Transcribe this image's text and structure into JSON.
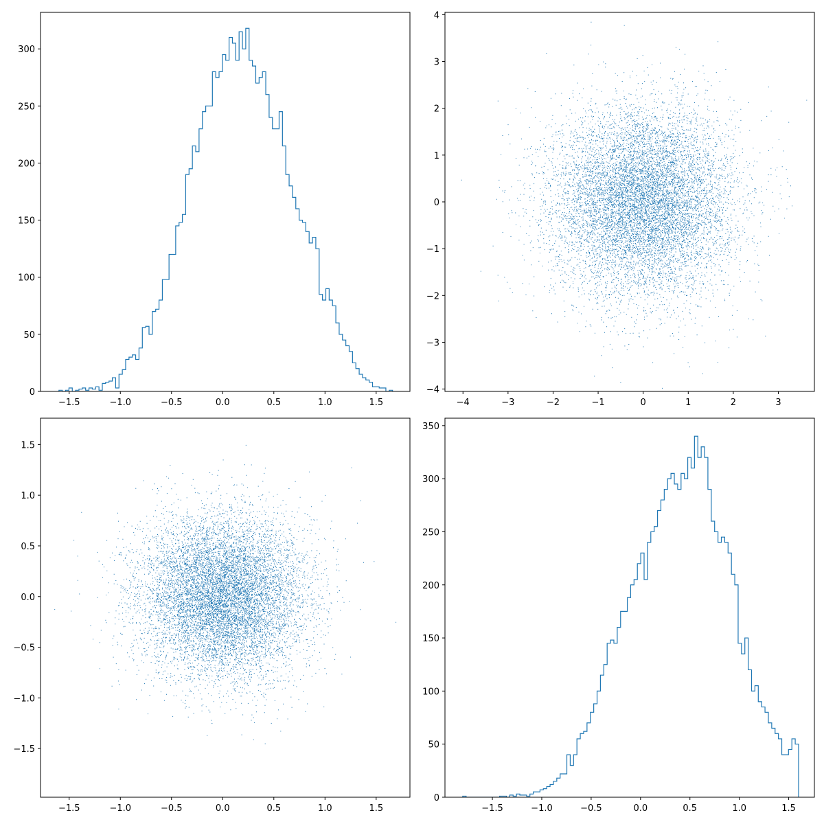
{
  "chart_data": [
    {
      "type": "histogram",
      "title": "",
      "xlabel": "",
      "ylabel": "",
      "xlim": [
        -1.78,
        1.83
      ],
      "ylim": [
        0,
        332
      ],
      "grid": false,
      "line_color": "#1f77b4",
      "xticks": [
        "−1.5",
        "−1.0",
        "−0.5",
        "0.0",
        "0.5",
        "1.0",
        "1.5"
      ],
      "xtick_values": [
        -1.5,
        -1.0,
        -0.5,
        0.0,
        0.5,
        1.0,
        1.5
      ],
      "yticks": [
        "0",
        "50",
        "100",
        "150",
        "200",
        "250",
        "300"
      ],
      "ytick_values": [
        0,
        50,
        100,
        150,
        200,
        250,
        300
      ],
      "bins": {
        "start": -1.6,
        "end": 1.66,
        "count": 100
      },
      "counts": [
        1,
        0,
        1,
        3,
        0,
        1,
        2,
        3,
        1,
        3,
        2,
        4,
        1,
        7,
        8,
        9,
        12,
        3,
        15,
        19,
        28,
        30,
        32,
        28,
        38,
        56,
        57,
        50,
        70,
        72,
        80,
        98,
        98,
        120,
        120,
        145,
        148,
        155,
        190,
        195,
        215,
        210,
        230,
        245,
        250,
        250,
        280,
        275,
        280,
        295,
        290,
        310,
        305,
        290,
        315,
        300,
        318,
        290,
        285,
        270,
        275,
        280,
        260,
        240,
        230,
        230,
        245,
        215,
        190,
        180,
        170,
        160,
        150,
        148,
        140,
        130,
        135,
        125,
        85,
        80,
        90,
        80,
        75,
        60,
        50,
        45,
        40,
        35,
        25,
        20,
        15,
        12,
        10,
        8,
        4,
        4,
        3,
        3,
        0,
        1
      ]
    },
    {
      "type": "scatter",
      "title": "",
      "xlabel": "",
      "ylabel": "",
      "xlim": [
        -4.4,
        3.8
      ],
      "ylim": [
        -4.05,
        4.05
      ],
      "grid": false,
      "marker_color": "#1f77b4",
      "marker": "pixel",
      "distribution": {
        "x_mean": 0.0,
        "x_std": 1.0,
        "y_mean": 0.0,
        "y_std": 1.0,
        "n": 10000
      },
      "xticks": [
        "−4",
        "−3",
        "−2",
        "−1",
        "0",
        "1",
        "2",
        "3"
      ],
      "xtick_values": [
        -4,
        -3,
        -2,
        -1,
        0,
        1,
        2,
        3
      ],
      "yticks": [
        "−4",
        "−3",
        "−2",
        "−1",
        "0",
        "1",
        "2",
        "3",
        "4"
      ],
      "ytick_values": [
        -4,
        -3,
        -2,
        -1,
        0,
        1,
        2,
        3,
        4
      ]
    },
    {
      "type": "scatter",
      "title": "",
      "xlabel": "",
      "ylabel": "",
      "xlim": [
        -1.78,
        1.83
      ],
      "ylim": [
        -1.98,
        1.76
      ],
      "grid": false,
      "marker_color": "#1f77b4",
      "marker": "pixel",
      "distribution": {
        "x_mean": 0.0,
        "x_std": 0.4,
        "y_mean": 0.0,
        "y_std": 0.4,
        "n": 10000
      },
      "xticks": [
        "−1.5",
        "−1.0",
        "−0.5",
        "0.0",
        "0.5",
        "1.0",
        "1.5"
      ],
      "xtick_values": [
        -1.5,
        -1.0,
        -0.5,
        0.0,
        0.5,
        1.0,
        1.5
      ],
      "yticks": [
        "−1.5",
        "−1.0",
        "−0.5",
        "0.0",
        "0.5",
        "1.0",
        "1.5"
      ],
      "ytick_values": [
        -1.5,
        -1.0,
        -0.5,
        0.0,
        0.5,
        1.0,
        1.5
      ]
    },
    {
      "type": "histogram",
      "title": "",
      "xlabel": "",
      "ylabel": "",
      "xlim": [
        -1.98,
        1.76
      ],
      "ylim": [
        0,
        357
      ],
      "grid": false,
      "line_color": "#1f77b4",
      "xticks": [
        "−1.5",
        "−1.0",
        "−0.5",
        "0.0",
        "0.5",
        "1.0",
        "1.5"
      ],
      "xtick_values": [
        -1.5,
        -1.0,
        -0.5,
        0.0,
        0.5,
        1.0,
        1.5
      ],
      "yticks": [
        "0",
        "50",
        "100",
        "150",
        "200",
        "250",
        "300",
        "350"
      ],
      "ytick_values": [
        0,
        50,
        100,
        150,
        200,
        250,
        300,
        350
      ],
      "bins": {
        "start": -1.8,
        "end": 1.6,
        "count": 100
      },
      "counts": [
        1,
        0,
        0,
        0,
        0,
        0,
        0,
        0,
        0,
        0,
        0,
        1,
        1,
        0,
        2,
        1,
        3,
        2,
        2,
        1,
        3,
        5,
        5,
        7,
        8,
        10,
        12,
        15,
        18,
        22,
        22,
        40,
        30,
        40,
        55,
        60,
        62,
        70,
        80,
        88,
        100,
        115,
        125,
        145,
        148,
        145,
        160,
        175,
        175,
        188,
        200,
        205,
        220,
        230,
        205,
        240,
        250,
        255,
        270,
        280,
        290,
        300,
        305,
        295,
        290,
        305,
        300,
        320,
        310,
        340,
        320,
        330,
        320,
        290,
        260,
        250,
        240,
        245,
        240,
        230,
        210,
        200,
        145,
        135,
        150,
        120,
        100,
        105,
        90,
        85,
        80,
        70,
        65,
        60,
        55,
        40,
        40,
        45,
        55,
        50
      ]
    }
  ]
}
